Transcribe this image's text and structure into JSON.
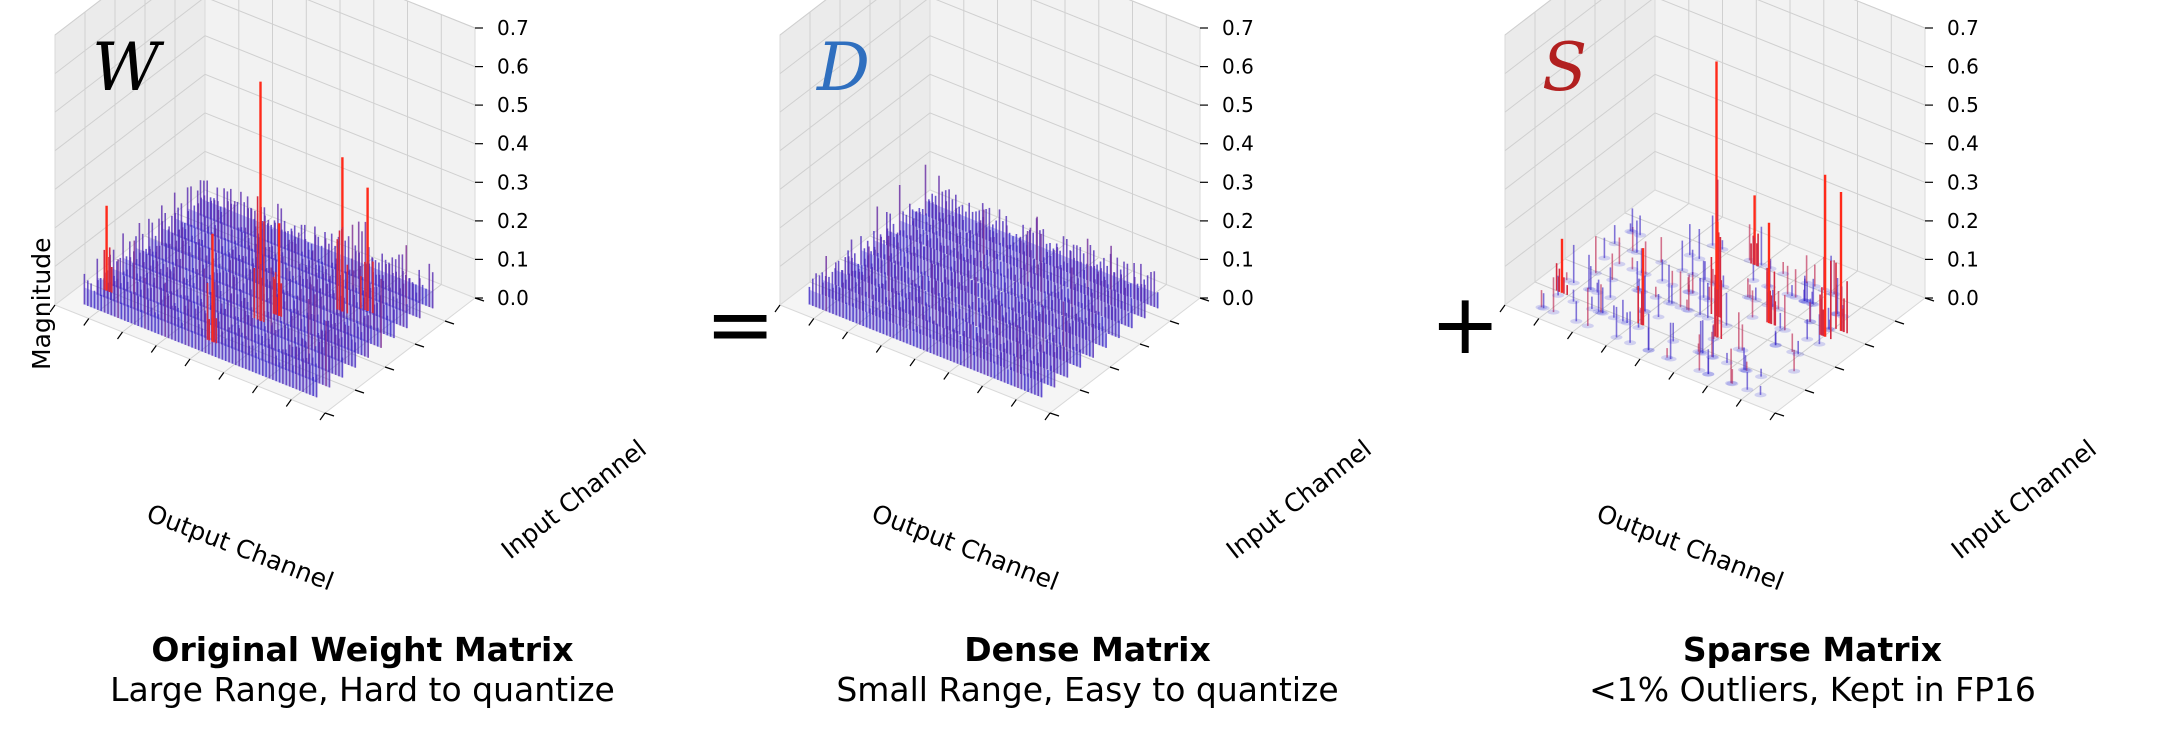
{
  "operators": {
    "equals": "=",
    "plus": "+"
  },
  "chart_data": [
    {
      "type": "bar3d",
      "symbol": "W",
      "symbol_color": "#000000",
      "title": "Original Weight Matrix",
      "subtitle": "Large Range, Hard to quantize",
      "xlabel": "Output Channel",
      "ylabel": "Input Channel",
      "zlabel": "Magnitude",
      "zlim": [
        0.0,
        0.7
      ],
      "zticks": [
        "0.0",
        "0.1",
        "0.2",
        "0.3",
        "0.4",
        "0.5",
        "0.6",
        "0.7"
      ],
      "color_low": "#2b2bd9",
      "color_high": "#ff2a1a",
      "typical_magnitude": 0.08,
      "peaks": [
        {
          "output": 0.55,
          "input": 0.38,
          "value": 0.62
        },
        {
          "output": 0.72,
          "input": 0.62,
          "value": 0.4
        },
        {
          "output": 0.78,
          "input": 0.68,
          "value": 0.32
        },
        {
          "output": 0.5,
          "input": 0.15,
          "value": 0.28
        },
        {
          "output": 0.58,
          "input": 0.45,
          "value": 0.24
        },
        {
          "output": 0.08,
          "input": 0.2,
          "value": 0.22
        }
      ]
    },
    {
      "type": "bar3d",
      "symbol": "D",
      "symbol_color": "#2f6fbf",
      "title": "Dense Matrix",
      "subtitle": "Small Range, Easy to quantize",
      "xlabel": "Output Channel",
      "ylabel": "Input Channel",
      "zlabel": "",
      "zlim": [
        0.0,
        0.7
      ],
      "zticks": [
        "0.0",
        "0.1",
        "0.2",
        "0.3",
        "0.4",
        "0.5",
        "0.6",
        "0.7"
      ],
      "color_low": "#2b2bd9",
      "color_high": "#ff2a1a",
      "typical_magnitude": 0.07,
      "peaks": []
    },
    {
      "type": "bar3d",
      "symbol": "S",
      "symbol_color": "#b22020",
      "title": "Sparse Matrix",
      "subtitle": "<1% Outliers, Kept in FP16",
      "xlabel": "Output Channel",
      "ylabel": "Input Channel",
      "zlabel": "",
      "zlim": [
        0.0,
        0.7
      ],
      "zticks": [
        "0.0",
        "0.1",
        "0.2",
        "0.3",
        "0.4",
        "0.5",
        "0.6",
        "0.7"
      ],
      "color_low": "#2b2bd9",
      "color_high": "#ff2a1a",
      "typical_magnitude": 0.0,
      "peaks": [
        {
          "output": 0.55,
          "input": 0.42,
          "value": 0.66
        },
        {
          "output": 0.88,
          "input": 0.55,
          "value": 0.42
        },
        {
          "output": 0.9,
          "input": 0.62,
          "value": 0.36
        },
        {
          "output": 0.62,
          "input": 0.3,
          "value": 0.3
        },
        {
          "output": 0.4,
          "input": 0.2,
          "value": 0.2
        },
        {
          "output": 0.1,
          "input": 0.2,
          "value": 0.14
        },
        {
          "output": 0.7,
          "input": 0.5,
          "value": 0.26
        },
        {
          "output": 0.48,
          "input": 0.8,
          "value": 0.18
        }
      ]
    }
  ]
}
